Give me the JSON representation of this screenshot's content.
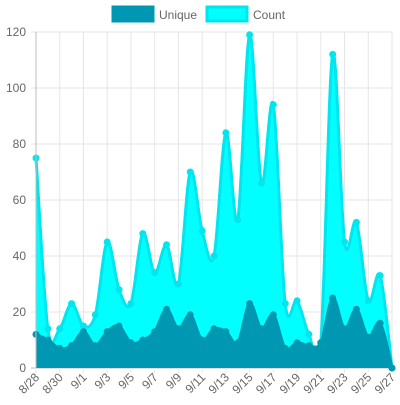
{
  "chart_data": {
    "type": "area",
    "title": "",
    "xlabel": "",
    "ylabel": "",
    "ylim": [
      0,
      120
    ],
    "y_ticks": [
      0,
      20,
      40,
      60,
      80,
      100,
      120
    ],
    "grid": true,
    "legend_position": "top-center",
    "categories": [
      "8/28",
      "8/29",
      "8/30",
      "8/31",
      "9/1",
      "9/2",
      "9/3",
      "9/4",
      "9/5",
      "9/6",
      "9/7",
      "9/8",
      "9/9",
      "9/10",
      "9/11",
      "9/12",
      "9/13",
      "9/14",
      "9/15",
      "9/16",
      "9/17",
      "9/18",
      "9/19",
      "9/20",
      "9/21",
      "9/22",
      "9/23",
      "9/24",
      "9/25",
      "9/26",
      "9/27"
    ],
    "x_tick_labels": [
      "8/28",
      "8/30",
      "9/1",
      "9/3",
      "9/5",
      "9/7",
      "9/9",
      "9/11",
      "9/13",
      "9/15",
      "9/17",
      "9/19",
      "9/21",
      "9/23",
      "9/25",
      "9/27"
    ],
    "series": [
      {
        "name": "Unique",
        "color": "#0097b2",
        "fill": "#0097b2",
        "values": [
          12,
          10,
          7,
          8,
          13,
          8,
          13,
          15,
          9,
          10,
          13,
          21,
          14,
          19,
          10,
          14,
          13,
          9,
          23,
          14,
          19,
          7,
          9,
          8,
          9,
          25,
          14,
          21,
          11,
          16,
          0
        ]
      },
      {
        "name": "Count",
        "color": "#00e5ee",
        "fill": "#00ffff",
        "values": [
          75,
          14,
          14,
          23,
          15,
          19,
          45,
          28,
          23,
          48,
          34,
          44,
          30,
          70,
          49,
          40,
          84,
          53,
          119,
          66,
          94,
          23,
          24,
          12,
          9,
          112,
          45,
          52,
          24,
          33,
          0
        ]
      }
    ]
  }
}
